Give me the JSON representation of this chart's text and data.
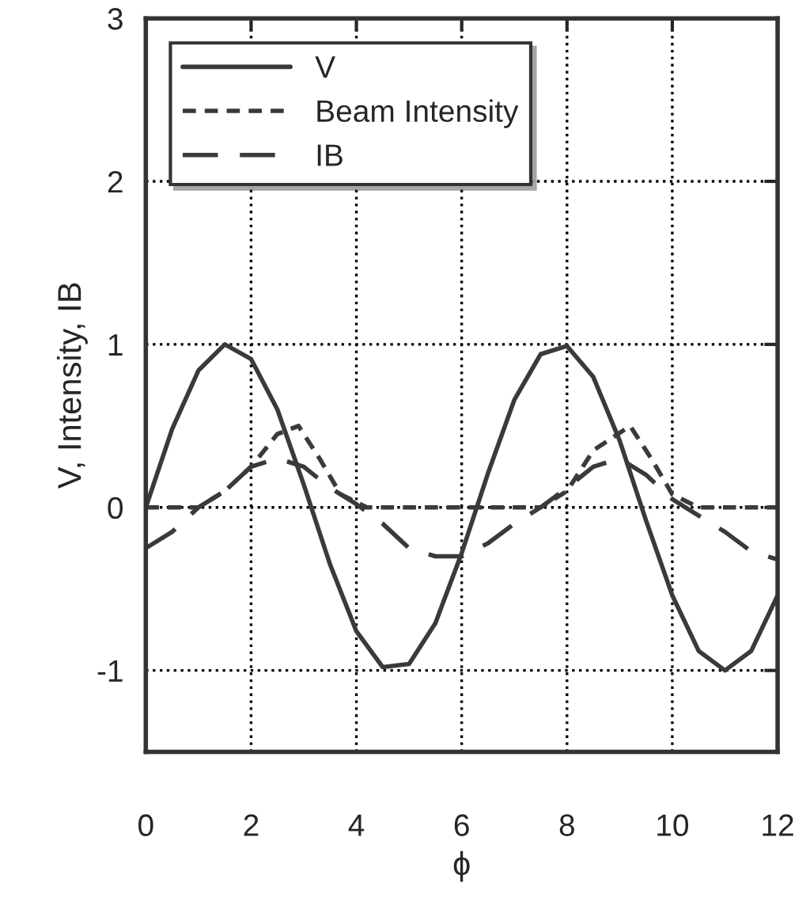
{
  "chart_data": {
    "type": "line",
    "xlabel": "ϕ",
    "ylabel": "V, Intensity, IB",
    "xlim": [
      0,
      12
    ],
    "ylim": [
      -1.5,
      3
    ],
    "xticks": [
      0,
      2,
      4,
      6,
      8,
      10,
      12
    ],
    "yticks": [
      -1,
      0,
      1,
      2,
      3
    ],
    "grid": true,
    "legend": "top left",
    "series": [
      {
        "name": "V",
        "color": "#3a3a3a",
        "line_style": "solid",
        "x": [
          0,
          0.5,
          1,
          1.5,
          2,
          2.5,
          3,
          3.5,
          4,
          4.5,
          5,
          5.5,
          6,
          6.5,
          7,
          7.5,
          8,
          8.5,
          9,
          9.5,
          10,
          10.5,
          11,
          11.5,
          12
        ],
        "values": [
          0,
          0.48,
          0.84,
          1.0,
          0.91,
          0.6,
          0.14,
          -0.35,
          -0.76,
          -0.98,
          -0.96,
          -0.71,
          -0.28,
          0.21,
          0.66,
          0.94,
          0.99,
          0.8,
          0.41,
          -0.08,
          -0.54,
          -0.88,
          -1.0,
          -0.88,
          -0.54
        ]
      },
      {
        "name": "Beam Intensity",
        "color": "#3a3a3a",
        "line_style": "dotted",
        "x": [
          0,
          1,
          1.5,
          2,
          2.5,
          2.9,
          3.3,
          3.7,
          4.2,
          7.5,
          8,
          8.5,
          9.2,
          9.6,
          10,
          10.5,
          12
        ],
        "values": [
          0,
          0,
          0.1,
          0.25,
          0.45,
          0.5,
          0.3,
          0.08,
          0,
          0,
          0.1,
          0.35,
          0.5,
          0.3,
          0.08,
          0,
          0
        ]
      },
      {
        "name": "IB",
        "color": "#3a3a3a",
        "line_style": "dashed",
        "x": [
          0,
          0.5,
          1,
          1.5,
          2,
          2.5,
          3,
          3.5,
          4,
          4.5,
          5,
          5.5,
          6,
          6.5,
          7,
          7.5,
          8,
          8.5,
          9,
          9.5,
          10,
          10.5,
          11,
          11.5,
          12
        ],
        "values": [
          -0.25,
          -0.15,
          0,
          0.1,
          0.25,
          0.3,
          0.25,
          0.12,
          0.02,
          -0.1,
          -0.25,
          -0.3,
          -0.3,
          -0.22,
          -0.1,
          0,
          0.12,
          0.25,
          0.3,
          0.2,
          0.05,
          -0.05,
          -0.15,
          -0.27,
          -0.32
        ]
      }
    ]
  }
}
